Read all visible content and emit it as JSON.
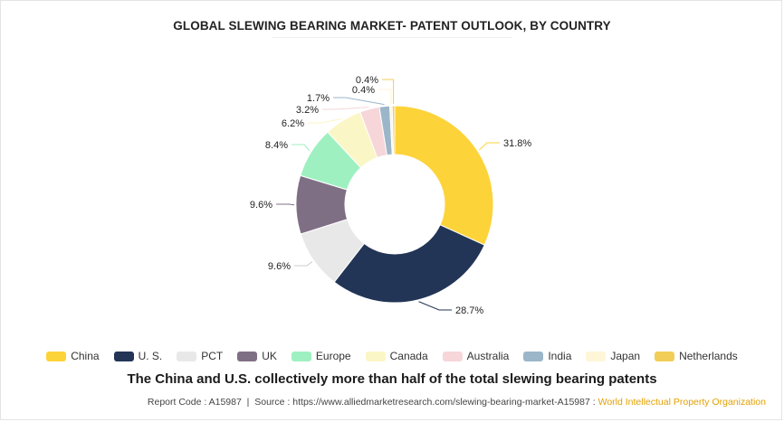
{
  "title": "GLOBAL SLEWING BEARING MARKET- PATENT OUTLOOK, BY COUNTRY",
  "caption": "The China and U.S. collectively more than half of the total slewing bearing patents",
  "footer": {
    "report": "Report Code : A15987",
    "separator": "|",
    "source": "Source : https://www.alliedmarketresearch.com/slewing-bearing-market-A15987 :",
    "organization": "World Intellectual Property Organization"
  },
  "chart_data": {
    "type": "pie",
    "donut": true,
    "legend_position": "bottom",
    "categories": [
      "China",
      "U. S.",
      "PCT",
      "UK",
      "Europe",
      "Canada",
      "Australia",
      "India",
      "Japan",
      "Netherlands"
    ],
    "values": [
      31.8,
      28.7,
      9.6,
      9.6,
      8.4,
      6.2,
      3.2,
      1.7,
      0.4,
      0.4
    ],
    "labels": [
      "31.8%",
      "28.7%",
      "9.6%",
      "9.6%",
      "8.4%",
      "6.2%",
      "3.2%",
      "1.7%",
      "0.4%",
      "0.4%"
    ],
    "colors": [
      "#fdd33a",
      "#233556",
      "#e8e8e8",
      "#7f6f85",
      "#9ff0c1",
      "#fbf6c6",
      "#f6d6d9",
      "#9bb6c9",
      "#fef6d7",
      "#f2cd58"
    ]
  }
}
